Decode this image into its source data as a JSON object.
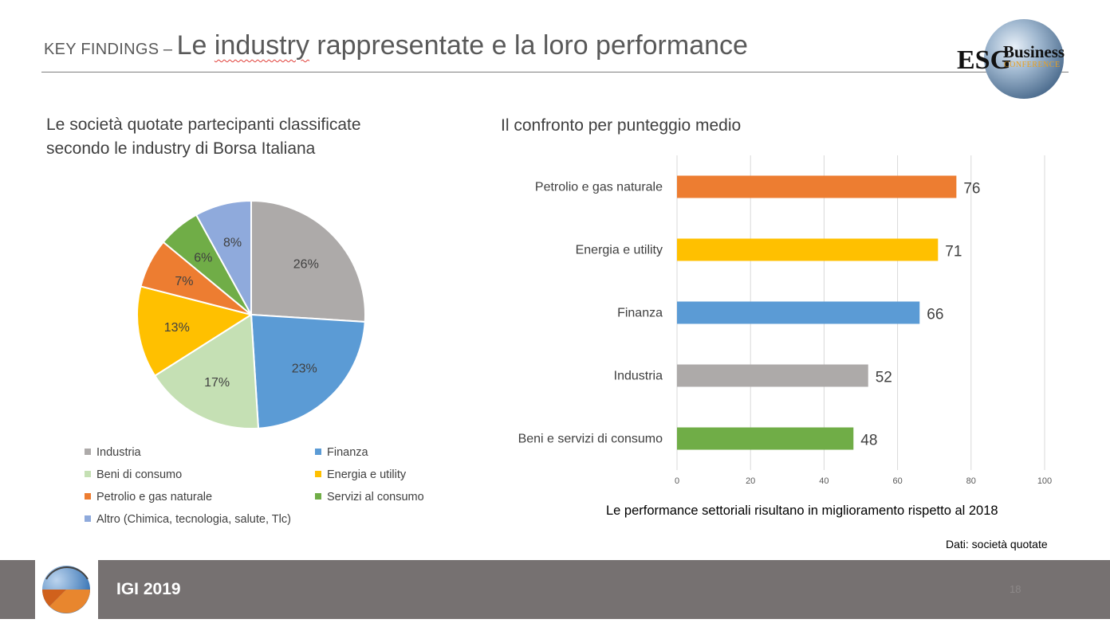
{
  "header": {
    "prefix": "KEY FINDINGS",
    "dash": " – ",
    "title_word_1": "Le ",
    "title_word_2": "industry",
    "title_rest": " rappresentate e la loro performance"
  },
  "logo": {
    "esg": "ESG",
    "business": "Business",
    "conference": "CONFERENCE"
  },
  "pie_chart": {
    "title_line_1": "Le società quotate partecipanti classificate",
    "title_line_2": "secondo le industry di Borsa Italiana"
  },
  "bar_chart": {
    "title": "Il confronto per punteggio medio"
  },
  "chart_data": [
    {
      "type": "pie",
      "categories": [
        "Industria",
        "Finanza",
        "Beni di consumo",
        "Energia e utility",
        "Petrolio e gas naturale",
        "Servizi al consumo",
        "Altro (Chimica, tecnologia, salute, Tlc)"
      ],
      "values": [
        26,
        23,
        17,
        13,
        7,
        6,
        8
      ],
      "data_labels": [
        "26%",
        "23%",
        "17%",
        "13%",
        "7%",
        "6%",
        "8%"
      ],
      "colors": [
        "#ADAAA9",
        "#5B9BD5",
        "#C5E0B4",
        "#FFC000",
        "#ED7D31",
        "#70AD47",
        "#8FAADC"
      ],
      "legend_position": "bottom"
    },
    {
      "type": "bar",
      "orientation": "horizontal",
      "categories": [
        "Petrolio e gas naturale",
        "Energia e utility",
        "Finanza",
        "Industria",
        "Beni e servizi di consumo"
      ],
      "values": [
        76,
        71,
        66,
        52,
        48
      ],
      "data_labels": [
        "76",
        "71",
        "66",
        "52",
        "48"
      ],
      "colors": [
        "#ED7D31",
        "#FFC000",
        "#5B9BD5",
        "#ADAAA9",
        "#70AD47"
      ],
      "xlim": [
        0,
        100
      ],
      "xticks": [
        "0",
        "20",
        "40",
        "60",
        "80",
        "100"
      ],
      "grid": true
    }
  ],
  "notes": {
    "bar_note": "Le performance settoriali risultano in miglioramento rispetto al 2018",
    "source": "Dati: società quotate"
  },
  "footer": {
    "label": "IGI 2019",
    "page_number": "18"
  }
}
